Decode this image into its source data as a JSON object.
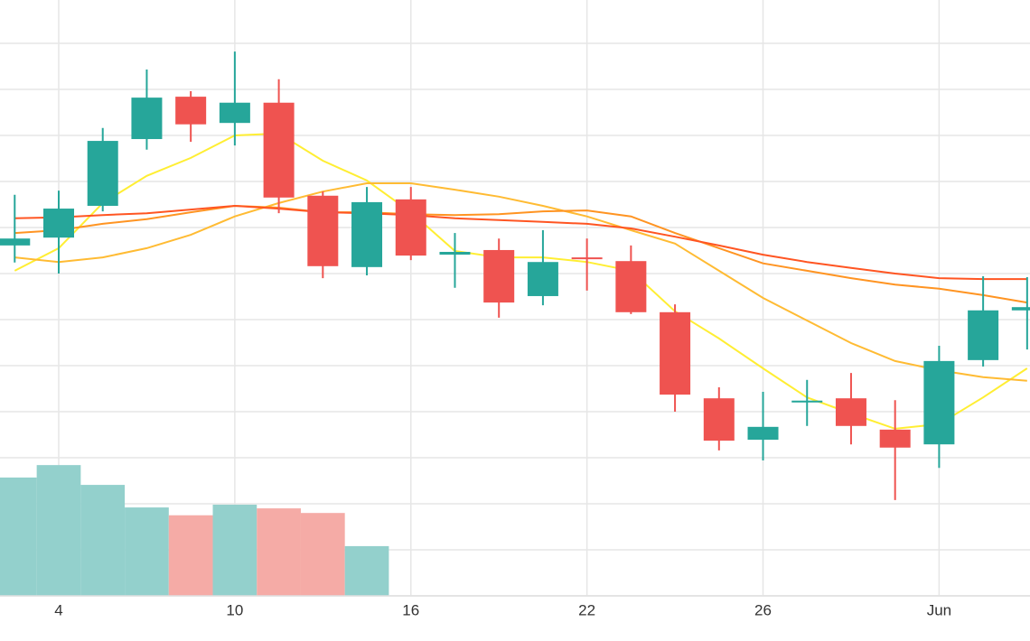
{
  "chart_data": {
    "type": "candlestick",
    "categories": [
      null,
      "4",
      null,
      null,
      null,
      "10",
      null,
      null,
      null,
      "16",
      null,
      null,
      null,
      "22",
      null,
      null,
      null,
      "26",
      null,
      null,
      null,
      "Jun",
      null,
      null
    ],
    "open": [
      7.61,
      7.78,
      8.47,
      9.92,
      10.84,
      10.27,
      10.71,
      8.69,
      7.14,
      8.61,
      7.41,
      7.51,
      6.51,
      7.35,
      7.27,
      6.16,
      4.29,
      3.39,
      4.2,
      4.29,
      3.61,
      3.29,
      5.12,
      6.2
    ],
    "high": [
      8.71,
      8.8,
      10.16,
      11.43,
      10.96,
      11.82,
      11.22,
      8.78,
      8.88,
      8.88,
      7.88,
      7.76,
      7.94,
      7.76,
      7.61,
      6.33,
      4.53,
      4.43,
      4.69,
      4.84,
      4.25,
      5.43,
      6.94,
      6.92
    ],
    "low": [
      7.24,
      7.0,
      8.35,
      9.69,
      9.86,
      9.78,
      8.31,
      6.9,
      6.96,
      7.29,
      6.69,
      6.04,
      6.31,
      6.63,
      6.12,
      4.0,
      3.16,
      2.94,
      3.69,
      3.29,
      2.08,
      2.78,
      4.98,
      5.35
    ],
    "close": [
      7.76,
      8.41,
      9.88,
      10.82,
      10.24,
      10.71,
      8.65,
      7.16,
      8.55,
      7.39,
      7.47,
      6.37,
      7.25,
      7.33,
      6.16,
      4.37,
      3.37,
      3.67,
      4.24,
      3.69,
      3.22,
      5.1,
      6.2,
      6.27
    ],
    "volume": [
      2.57,
      2.84,
      2.41,
      1.92,
      1.75,
      1.98,
      1.9,
      1.8,
      1.08,
      null,
      null,
      null,
      null,
      null,
      null,
      null,
      null,
      null,
      null,
      null,
      null,
      null,
      null,
      null
    ],
    "up_color": "#26a69a",
    "down_color": "#ef5350",
    "volume_up_color": "#93d0cc",
    "volume_down_color": "#f5aba6",
    "series": [
      {
        "color": "#ffee33",
        "values": [
          7.06,
          7.55,
          8.53,
          9.12,
          9.51,
          10.0,
          10.04,
          9.45,
          9.02,
          8.33,
          7.49,
          7.35,
          7.35,
          7.25,
          7.06,
          6.18,
          5.59,
          4.94,
          4.31,
          3.96,
          3.63,
          3.73,
          4.31,
          4.94
        ]
      },
      {
        "color": "#ffbb33",
        "values": [
          7.35,
          7.25,
          7.35,
          7.55,
          7.84,
          8.24,
          8.53,
          8.78,
          8.96,
          8.96,
          8.82,
          8.67,
          8.47,
          8.24,
          7.94,
          7.65,
          7.06,
          6.47,
          5.98,
          5.49,
          5.1,
          4.9,
          4.75,
          4.67
        ]
      },
      {
        "color": "#ff9422",
        "values": [
          7.88,
          7.94,
          8.08,
          8.18,
          8.33,
          8.47,
          8.43,
          8.33,
          8.33,
          8.29,
          8.27,
          8.29,
          8.35,
          8.37,
          8.24,
          7.88,
          7.55,
          7.22,
          7.06,
          6.9,
          6.76,
          6.67,
          6.53,
          6.37
        ]
      },
      {
        "color": "#ff5522",
        "values": [
          8.2,
          8.22,
          8.27,
          8.31,
          8.39,
          8.47,
          8.41,
          8.33,
          8.31,
          8.27,
          8.2,
          8.16,
          8.12,
          8.08,
          7.98,
          7.8,
          7.61,
          7.41,
          7.25,
          7.12,
          7.0,
          6.9,
          6.88,
          6.88
        ]
      }
    ],
    "ylim": [
      0,
      12.94
    ],
    "yticks": [
      0,
      1,
      2,
      3,
      4,
      5,
      6,
      7,
      8,
      9,
      10,
      11,
      12
    ],
    "grid": true
  }
}
